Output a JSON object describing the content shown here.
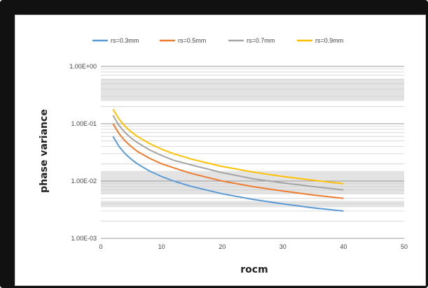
{
  "chart_data": {
    "type": "line",
    "xlabel": "rocm",
    "ylabel": "phase variance",
    "yscale": "log",
    "xlim": [
      0,
      50
    ],
    "ylim": [
      0.001,
      1
    ],
    "xticks": [
      "0",
      "10",
      "20",
      "30",
      "40",
      "50"
    ],
    "yticks": [
      "1.00E+00",
      "1.00E-01",
      "1.00E-02",
      "1.00E-03"
    ],
    "grid": true,
    "legend_position": "top",
    "x": [
      2,
      3,
      4,
      5,
      6,
      8,
      10,
      12,
      15,
      20,
      25,
      30,
      35,
      40
    ],
    "series": [
      {
        "name": "rs=0.3mm",
        "color": "#5B9BD5",
        "values": [
          0.06,
          0.04,
          0.03,
          0.024,
          0.02,
          0.015,
          0.012,
          0.01,
          0.008,
          0.006,
          0.0048,
          0.004,
          0.0034,
          0.003
        ]
      },
      {
        "name": "rs=0.5mm",
        "color": "#ED7D31",
        "values": [
          0.1,
          0.067,
          0.05,
          0.04,
          0.033,
          0.025,
          0.02,
          0.017,
          0.0135,
          0.01,
          0.008,
          0.0067,
          0.0057,
          0.005
        ]
      },
      {
        "name": "rs=0.7mm",
        "color": "#A5A5A5",
        "values": [
          0.14,
          0.093,
          0.07,
          0.056,
          0.047,
          0.035,
          0.028,
          0.023,
          0.019,
          0.014,
          0.011,
          0.0093,
          0.008,
          0.007
        ]
      },
      {
        "name": "rs=0.9mm",
        "color": "#FFC000",
        "values": [
          0.18,
          0.12,
          0.09,
          0.072,
          0.06,
          0.045,
          0.036,
          0.03,
          0.024,
          0.018,
          0.0144,
          0.012,
          0.0103,
          0.009
        ]
      }
    ]
  }
}
